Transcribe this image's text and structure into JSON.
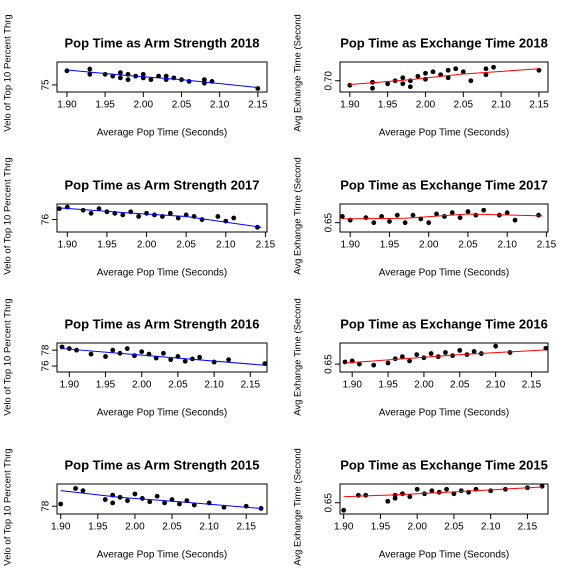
{
  "chart_data": [
    {
      "type": "scatter",
      "title": "Pop Time as Arm Strength 2018",
      "xlabel": "Average Pop Time (Seconds)",
      "ylabel": "Velo of Top 10 Percent Thrg",
      "xlim": [
        1.887,
        2.162
      ],
      "ylim": [
        74.6,
        76.3
      ],
      "xticks": [
        {
          "value": 1.9,
          "label": "1.90"
        },
        1.95,
        {
          "value": 2.0,
          "label": "2.00"
        },
        2.05,
        {
          "value": 2.1,
          "label": "2.10"
        },
        2.15
      ],
      "yticks": [
        75
      ],
      "x": [
        1.9,
        1.93,
        1.93,
        1.95,
        1.96,
        1.97,
        1.97,
        1.98,
        1.98,
        1.99,
        2.0,
        2.0,
        2.01,
        2.02,
        2.03,
        2.03,
        2.04,
        2.05,
        2.06,
        2.08,
        2.08,
        2.09,
        2.15
      ],
      "y": [
        75.8,
        75.6,
        75.9,
        75.6,
        75.5,
        75.7,
        75.4,
        75.6,
        75.3,
        75.5,
        75.4,
        75.6,
        75.3,
        75.5,
        75.3,
        75.5,
        75.4,
        75.3,
        75.2,
        75.3,
        75.1,
        75.2,
        74.8
      ],
      "color": "#000000",
      "trend": {
        "x": [
          1.9,
          1.975,
          2.05,
          2.15
        ],
        "y": [
          75.85,
          75.55,
          75.3,
          74.85
        ],
        "color": "#0000ff"
      }
    },
    {
      "type": "scatter",
      "title": "Pop Time as Exchange Time 2018",
      "xlabel": "Average Pop Time (Seconds)",
      "ylabel": "Avg Exhange Time (Second",
      "xlim": [
        1.887,
        2.162
      ],
      "ylim": [
        0.685,
        0.725
      ],
      "xticks": [
        {
          "value": 1.9,
          "label": "1.90"
        },
        1.95,
        {
          "value": 2.0,
          "label": "2.00"
        },
        2.05,
        {
          "value": 2.1,
          "label": "2.10"
        },
        2.15
      ],
      "yticks": [
        {
          "value": 0.7,
          "label": "0.70"
        }
      ],
      "x": [
        1.9,
        1.93,
        1.93,
        1.95,
        1.96,
        1.97,
        1.97,
        1.98,
        1.98,
        1.99,
        2.0,
        2.0,
        2.01,
        2.02,
        2.03,
        2.03,
        2.04,
        2.05,
        2.06,
        2.08,
        2.08,
        2.09,
        2.15
      ],
      "y": [
        0.694,
        0.698,
        0.69,
        0.696,
        0.7,
        0.704,
        0.696,
        0.7,
        0.692,
        0.706,
        0.702,
        0.71,
        0.712,
        0.708,
        0.714,
        0.704,
        0.716,
        0.712,
        0.7,
        0.708,
        0.716,
        0.718,
        0.714
      ],
      "color": "#000000",
      "trend": {
        "x": [
          1.9,
          1.975,
          2.05,
          2.15
        ],
        "y": [
          0.695,
          0.701,
          0.709,
          0.716
        ],
        "color": "#ff0000"
      }
    },
    {
      "type": "scatter",
      "title": "Pop Time as Arm Strength 2017",
      "xlabel": "Average Pop Time (Seconds)",
      "ylabel": "Velo of Top 10 Percent Thrg",
      "xlim": [
        1.887,
        2.152
      ],
      "ylim": [
        75.2,
        77.0
      ],
      "xticks": [
        {
          "value": 1.9,
          "label": "1.90"
        },
        1.95,
        {
          "value": 2.0,
          "label": "2.00"
        },
        2.05,
        {
          "value": 2.1,
          "label": "2.10"
        },
        2.15
      ],
      "yticks": [
        76
      ],
      "x": [
        1.89,
        1.9,
        1.92,
        1.93,
        1.94,
        1.95,
        1.96,
        1.97,
        1.98,
        1.99,
        2.0,
        2.01,
        2.02,
        2.03,
        2.04,
        2.05,
        2.06,
        2.07,
        2.09,
        2.1,
        2.11,
        2.14
      ],
      "y": [
        76.7,
        76.8,
        76.6,
        76.4,
        76.7,
        76.5,
        76.4,
        76.3,
        76.5,
        76.2,
        76.4,
        76.3,
        76.2,
        76.4,
        76.1,
        76.3,
        76.2,
        76.0,
        76.2,
        75.9,
        76.1,
        75.5
      ],
      "color": "#000000",
      "trend": {
        "x": [
          1.89,
          1.97,
          2.05,
          2.145
        ],
        "y": [
          76.75,
          76.45,
          76.2,
          75.5
        ],
        "color": "#0000ff"
      }
    },
    {
      "type": "scatter",
      "title": "Pop Time as Exchange Time 2017",
      "xlabel": "Average Pop Time (Seconds)",
      "ylabel": "Avg Exhange Time (Second",
      "xlim": [
        1.887,
        2.152
      ],
      "ylim": [
        0.635,
        0.68
      ],
      "xticks": [
        {
          "value": 1.9,
          "label": "1.90"
        },
        1.95,
        {
          "value": 2.0,
          "label": "2.00"
        },
        2.05,
        {
          "value": 2.1,
          "label": "2.10"
        },
        2.15
      ],
      "yticks": [
        0.65
      ],
      "x": [
        1.89,
        1.9,
        1.92,
        1.93,
        1.94,
        1.95,
        1.96,
        1.97,
        1.98,
        1.99,
        2.0,
        2.01,
        2.02,
        2.03,
        2.04,
        2.05,
        2.06,
        2.07,
        2.09,
        2.1,
        2.11,
        2.14
      ],
      "y": [
        0.66,
        0.654,
        0.658,
        0.65,
        0.66,
        0.652,
        0.662,
        0.65,
        0.662,
        0.656,
        0.65,
        0.664,
        0.66,
        0.666,
        0.658,
        0.668,
        0.662,
        0.67,
        0.662,
        0.666,
        0.654,
        0.662
      ],
      "color": "#000000",
      "trend": {
        "x": [
          1.89,
          1.97,
          2.05,
          2.145
        ],
        "y": [
          0.656,
          0.657,
          0.664,
          0.661
        ],
        "color": "#ff0000"
      }
    },
    {
      "type": "scatter",
      "title": "Pop Time as Arm Strength 2016",
      "xlabel": "Average Pop Time (Seconds)",
      "ylabel": "Velo of Top 10 Percent Thrg",
      "xlim": [
        1.883,
        2.173
      ],
      "ylim": [
        75.25,
        78.9
      ],
      "xticks": [
        {
          "value": 1.9,
          "label": "1.90"
        },
        1.95,
        {
          "value": 2.0,
          "label": "2.00"
        },
        2.05,
        {
          "value": 2.1,
          "label": "2.10"
        },
        2.15
      ],
      "yticks": [
        76,
        78
      ],
      "x": [
        1.89,
        1.9,
        1.91,
        1.93,
        1.95,
        1.96,
        1.97,
        1.98,
        1.99,
        2.0,
        2.01,
        2.02,
        2.03,
        2.04,
        2.05,
        2.06,
        2.07,
        2.08,
        2.1,
        2.12,
        2.17
      ],
      "y": [
        78.4,
        78.2,
        78.0,
        77.5,
        77.2,
        78.0,
        77.6,
        78.2,
        77.3,
        77.8,
        77.5,
        77.0,
        77.6,
        76.8,
        77.2,
        76.6,
        76.9,
        77.1,
        76.5,
        76.8,
        76.3
      ],
      "color": "#000000",
      "trend": {
        "x": [
          1.89,
          1.97,
          2.05,
          2.17
        ],
        "y": [
          78.2,
          77.6,
          77.0,
          76.1
        ],
        "color": "#0000ff"
      }
    },
    {
      "type": "scatter",
      "title": "Pop Time as Exchange Time 2016",
      "xlabel": "Average Pop Time (Seconds)",
      "ylabel": "Avg Exhange Time (Second",
      "xlim": [
        1.883,
        2.173
      ],
      "ylim": [
        0.635,
        0.69
      ],
      "xticks": [
        {
          "value": 1.9,
          "label": "1.90"
        },
        1.95,
        {
          "value": 2.0,
          "label": "2.00"
        },
        2.05,
        {
          "value": 2.1,
          "label": "2.10"
        },
        2.15
      ],
      "yticks": [
        0.65
      ],
      "x": [
        1.89,
        1.9,
        1.91,
        1.93,
        1.95,
        1.96,
        1.97,
        1.98,
        1.99,
        2.0,
        2.01,
        2.02,
        2.03,
        2.04,
        2.05,
        2.06,
        2.07,
        2.08,
        2.1,
        2.12,
        2.17
      ],
      "y": [
        0.654,
        0.656,
        0.65,
        0.648,
        0.652,
        0.66,
        0.664,
        0.656,
        0.668,
        0.662,
        0.67,
        0.664,
        0.672,
        0.666,
        0.676,
        0.668,
        0.674,
        0.67,
        0.684,
        0.672,
        0.68
      ],
      "color": "#000000",
      "trend": {
        "x": [
          1.89,
          1.97,
          2.05,
          2.17
        ],
        "y": [
          0.652,
          0.66,
          0.668,
          0.677
        ],
        "color": "#ff0000"
      }
    },
    {
      "type": "scatter",
      "title": "Pop Time as Arm Strength 2015",
      "xlabel": "Average Pop Time (Seconds)",
      "ylabel": "Velo of Top 10 Percent Thrg",
      "xlim": [
        1.895,
        2.178
      ],
      "ylim": [
        77.3,
        80.0
      ],
      "xticks": [
        {
          "value": 1.9,
          "label": "1.90"
        },
        1.95,
        {
          "value": 2.0,
          "label": "2.00"
        },
        2.05,
        {
          "value": 2.1,
          "label": "2.10"
        },
        2.15
      ],
      "yticks": [
        78
      ],
      "x": [
        1.9,
        1.92,
        1.93,
        1.96,
        1.97,
        1.97,
        1.98,
        1.99,
        2.0,
        2.01,
        2.02,
        2.03,
        2.04,
        2.05,
        2.06,
        2.07,
        2.08,
        2.1,
        2.12,
        2.15,
        2.17
      ],
      "y": [
        78.2,
        79.6,
        79.4,
        78.6,
        79.0,
        78.3,
        78.8,
        78.5,
        79.1,
        78.7,
        78.4,
        78.9,
        78.3,
        78.6,
        78.2,
        78.5,
        78.1,
        78.3,
        77.9,
        78.0,
        77.8
      ],
      "color": "#000000",
      "trend": {
        "x": [
          1.9,
          1.98,
          2.06,
          2.17
        ],
        "y": [
          79.4,
          78.8,
          78.4,
          77.8
        ],
        "color": "#0000ff"
      }
    },
    {
      "type": "scatter",
      "title": "Pop Time as Exchange Time 2015",
      "xlabel": "Average Pop Time (Seconds)",
      "ylabel": "Avg Exhange Time (Second",
      "xlim": [
        1.895,
        2.178
      ],
      "ylim": [
        0.635,
        0.675
      ],
      "xticks": [
        {
          "value": 1.9,
          "label": "1.90"
        },
        1.95,
        {
          "value": 2.0,
          "label": "2.00"
        },
        2.05,
        {
          "value": 2.1,
          "label": "2.10"
        },
        2.15
      ],
      "yticks": [
        0.65
      ],
      "x": [
        1.9,
        1.92,
        1.93,
        1.96,
        1.97,
        1.97,
        1.98,
        1.99,
        2.0,
        2.01,
        2.02,
        2.03,
        2.04,
        2.05,
        2.06,
        2.07,
        2.08,
        2.1,
        2.12,
        2.15,
        2.17
      ],
      "y": [
        0.64,
        0.66,
        0.66,
        0.652,
        0.66,
        0.656,
        0.662,
        0.658,
        0.668,
        0.662,
        0.666,
        0.664,
        0.668,
        0.662,
        0.666,
        0.664,
        0.668,
        0.666,
        0.668,
        0.67,
        0.672
      ],
      "color": "#000000",
      "trend": {
        "x": [
          1.9,
          1.98,
          2.06,
          2.17
        ],
        "y": [
          0.658,
          0.661,
          0.665,
          0.671
        ],
        "color": "#ff0000"
      }
    }
  ]
}
